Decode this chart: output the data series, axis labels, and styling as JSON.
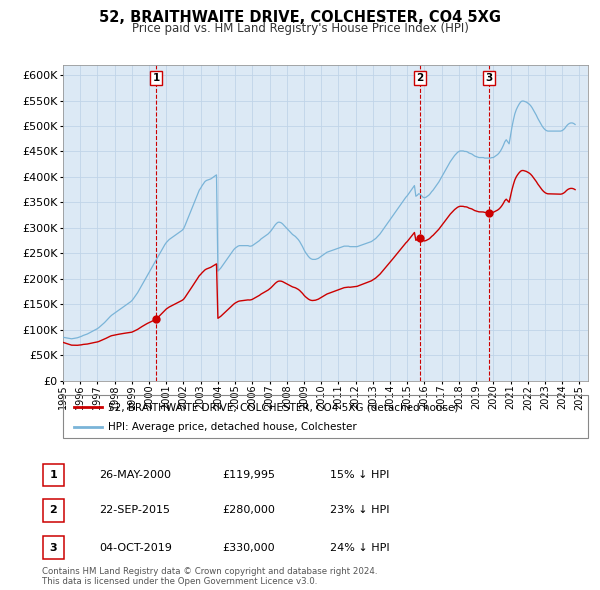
{
  "title": "52, BRAITHWAITE DRIVE, COLCHESTER, CO4 5XG",
  "subtitle": "Price paid vs. HM Land Registry's House Price Index (HPI)",
  "ylim": [
    0,
    620000
  ],
  "yticks": [
    0,
    50000,
    100000,
    150000,
    200000,
    250000,
    300000,
    350000,
    400000,
    450000,
    500000,
    550000,
    600000
  ],
  "xlim_start": 1995.0,
  "xlim_end": 2025.5,
  "hpi_color": "#7ab4d8",
  "price_color": "#cc0000",
  "marker_color": "#cc0000",
  "grid_color": "#c0d4e8",
  "background_color": "#dce9f5",
  "legend_items": [
    "52, BRAITHWAITE DRIVE, COLCHESTER, CO4 5XG (detached house)",
    "HPI: Average price, detached house, Colchester"
  ],
  "sale_points": [
    {
      "date_num": 2000.4,
      "price": 119995,
      "label": "1"
    },
    {
      "date_num": 2015.73,
      "price": 280000,
      "label": "2"
    },
    {
      "date_num": 2019.76,
      "price": 330000,
      "label": "3"
    }
  ],
  "vline_dates": [
    2000.4,
    2015.73,
    2019.76
  ],
  "annotations": [
    {
      "label": "1",
      "date": "26-MAY-2000",
      "price": "£119,995",
      "hpi_diff": "15% ↓ HPI"
    },
    {
      "label": "2",
      "date": "22-SEP-2015",
      "price": "£280,000",
      "hpi_diff": "23% ↓ HPI"
    },
    {
      "label": "3",
      "date": "04-OCT-2019",
      "price": "£330,000",
      "hpi_diff": "24% ↓ HPI"
    }
  ],
  "footer": "Contains HM Land Registry data © Crown copyright and database right 2024.\nThis data is licensed under the Open Government Licence v3.0.",
  "hpi_years": [
    1995.0,
    1995.083,
    1995.167,
    1995.25,
    1995.333,
    1995.417,
    1995.5,
    1995.583,
    1995.667,
    1995.75,
    1995.833,
    1995.917,
    1996.0,
    1996.083,
    1996.167,
    1996.25,
    1996.333,
    1996.417,
    1996.5,
    1996.583,
    1996.667,
    1996.75,
    1996.833,
    1996.917,
    1997.0,
    1997.083,
    1997.167,
    1997.25,
    1997.333,
    1997.417,
    1997.5,
    1997.583,
    1997.667,
    1997.75,
    1997.833,
    1997.917,
    1998.0,
    1998.083,
    1998.167,
    1998.25,
    1998.333,
    1998.417,
    1998.5,
    1998.583,
    1998.667,
    1998.75,
    1998.833,
    1998.917,
    1999.0,
    1999.083,
    1999.167,
    1999.25,
    1999.333,
    1999.417,
    1999.5,
    1999.583,
    1999.667,
    1999.75,
    1999.833,
    1999.917,
    2000.0,
    2000.083,
    2000.167,
    2000.25,
    2000.333,
    2000.417,
    2000.5,
    2000.583,
    2000.667,
    2000.75,
    2000.833,
    2000.917,
    2001.0,
    2001.083,
    2001.167,
    2001.25,
    2001.333,
    2001.417,
    2001.5,
    2001.583,
    2001.667,
    2001.75,
    2001.833,
    2001.917,
    2002.0,
    2002.083,
    2002.167,
    2002.25,
    2002.333,
    2002.417,
    2002.5,
    2002.583,
    2002.667,
    2002.75,
    2002.833,
    2002.917,
    2003.0,
    2003.083,
    2003.167,
    2003.25,
    2003.333,
    2003.417,
    2003.5,
    2003.583,
    2003.667,
    2003.75,
    2003.833,
    2003.917,
    2004.0,
    2004.083,
    2004.167,
    2004.25,
    2004.333,
    2004.417,
    2004.5,
    2004.583,
    2004.667,
    2004.75,
    2004.833,
    2004.917,
    2005.0,
    2005.083,
    2005.167,
    2005.25,
    2005.333,
    2005.417,
    2005.5,
    2005.583,
    2005.667,
    2005.75,
    2005.833,
    2005.917,
    2006.0,
    2006.083,
    2006.167,
    2006.25,
    2006.333,
    2006.417,
    2006.5,
    2006.583,
    2006.667,
    2006.75,
    2006.833,
    2006.917,
    2007.0,
    2007.083,
    2007.167,
    2007.25,
    2007.333,
    2007.417,
    2007.5,
    2007.583,
    2007.667,
    2007.75,
    2007.833,
    2007.917,
    2008.0,
    2008.083,
    2008.167,
    2008.25,
    2008.333,
    2008.417,
    2008.5,
    2008.583,
    2008.667,
    2008.75,
    2008.833,
    2008.917,
    2009.0,
    2009.083,
    2009.167,
    2009.25,
    2009.333,
    2009.417,
    2009.5,
    2009.583,
    2009.667,
    2009.75,
    2009.833,
    2009.917,
    2010.0,
    2010.083,
    2010.167,
    2010.25,
    2010.333,
    2010.417,
    2010.5,
    2010.583,
    2010.667,
    2010.75,
    2010.833,
    2010.917,
    2011.0,
    2011.083,
    2011.167,
    2011.25,
    2011.333,
    2011.417,
    2011.5,
    2011.583,
    2011.667,
    2011.75,
    2011.833,
    2011.917,
    2012.0,
    2012.083,
    2012.167,
    2012.25,
    2012.333,
    2012.417,
    2012.5,
    2012.583,
    2012.667,
    2012.75,
    2012.833,
    2012.917,
    2013.0,
    2013.083,
    2013.167,
    2013.25,
    2013.333,
    2013.417,
    2013.5,
    2013.583,
    2013.667,
    2013.75,
    2013.833,
    2013.917,
    2014.0,
    2014.083,
    2014.167,
    2014.25,
    2014.333,
    2014.417,
    2014.5,
    2014.583,
    2014.667,
    2014.75,
    2014.833,
    2014.917,
    2015.0,
    2015.083,
    2015.167,
    2015.25,
    2015.333,
    2015.417,
    2015.5,
    2015.583,
    2015.667,
    2015.75,
    2015.833,
    2015.917,
    2016.0,
    2016.083,
    2016.167,
    2016.25,
    2016.333,
    2016.417,
    2016.5,
    2016.583,
    2016.667,
    2016.75,
    2016.833,
    2016.917,
    2017.0,
    2017.083,
    2017.167,
    2017.25,
    2017.333,
    2017.417,
    2017.5,
    2017.583,
    2017.667,
    2017.75,
    2017.833,
    2017.917,
    2018.0,
    2018.083,
    2018.167,
    2018.25,
    2018.333,
    2018.417,
    2018.5,
    2018.583,
    2018.667,
    2018.75,
    2018.833,
    2018.917,
    2019.0,
    2019.083,
    2019.167,
    2019.25,
    2019.333,
    2019.417,
    2019.5,
    2019.583,
    2019.667,
    2019.75,
    2019.833,
    2019.917,
    2020.0,
    2020.083,
    2020.167,
    2020.25,
    2020.333,
    2020.417,
    2020.5,
    2020.583,
    2020.667,
    2020.75,
    2020.833,
    2020.917,
    2021.0,
    2021.083,
    2021.167,
    2021.25,
    2021.333,
    2021.417,
    2021.5,
    2021.583,
    2021.667,
    2021.75,
    2021.833,
    2021.917,
    2022.0,
    2022.083,
    2022.167,
    2022.25,
    2022.333,
    2022.417,
    2022.5,
    2022.583,
    2022.667,
    2022.75,
    2022.833,
    2022.917,
    2023.0,
    2023.083,
    2023.167,
    2023.25,
    2023.333,
    2023.417,
    2023.5,
    2023.583,
    2023.667,
    2023.75,
    2023.833,
    2023.917,
    2024.0,
    2024.083,
    2024.167,
    2024.25,
    2024.333,
    2024.417,
    2024.5,
    2024.583,
    2024.667,
    2024.75
  ],
  "hpi_vals": [
    85000,
    84500,
    84000,
    83500,
    83000,
    82500,
    82000,
    82500,
    83000,
    83500,
    84000,
    85000,
    86000,
    87000,
    88500,
    89500,
    90500,
    91500,
    93000,
    94500,
    96000,
    97500,
    99000,
    100500,
    102000,
    104000,
    106500,
    109000,
    111500,
    114000,
    117000,
    120000,
    123000,
    126000,
    128500,
    130500,
    132500,
    134500,
    136500,
    138500,
    140500,
    142500,
    144500,
    146500,
    148500,
    150500,
    152500,
    154500,
    157000,
    160500,
    164500,
    168500,
    172500,
    177500,
    182500,
    187500,
    192500,
    197500,
    202500,
    207500,
    212000,
    217000,
    222000,
    227000,
    232000,
    237000,
    242000,
    247000,
    252000,
    257000,
    262000,
    267000,
    271000,
    274000,
    277000,
    279000,
    281000,
    283000,
    285000,
    287000,
    289000,
    291000,
    293000,
    295000,
    298000,
    304000,
    311000,
    318000,
    325000,
    332000,
    339000,
    346000,
    353000,
    360000,
    367000,
    374000,
    378000,
    383000,
    387000,
    391000,
    393000,
    394000,
    395000,
    396000,
    398000,
    400000,
    402000,
    404000,
    215000,
    218000,
    221000,
    225000,
    229000,
    233000,
    237000,
    241000,
    245000,
    249000,
    253000,
    257000,
    260000,
    262000,
    264000,
    265000,
    265000,
    265000,
    265000,
    265000,
    265000,
    265000,
    264000,
    264000,
    265000,
    267000,
    269000,
    271000,
    273000,
    275000,
    278000,
    280000,
    282000,
    284000,
    286000,
    288000,
    291000,
    294000,
    298000,
    302000,
    306000,
    309000,
    311000,
    311000,
    310000,
    308000,
    305000,
    302000,
    299000,
    296000,
    293000,
    290000,
    287000,
    285000,
    283000,
    280000,
    277000,
    273000,
    268000,
    263000,
    257000,
    252000,
    248000,
    244000,
    241000,
    239000,
    238000,
    238000,
    238000,
    239000,
    240000,
    242000,
    244000,
    246000,
    248000,
    250000,
    252000,
    253000,
    254000,
    255000,
    256000,
    257000,
    258000,
    259000,
    260000,
    261000,
    262000,
    263000,
    264000,
    264000,
    264000,
    264000,
    263000,
    263000,
    263000,
    263000,
    263000,
    263000,
    264000,
    265000,
    266000,
    267000,
    268000,
    269000,
    270000,
    271000,
    272000,
    273000,
    275000,
    277000,
    279000,
    282000,
    285000,
    288000,
    292000,
    296000,
    300000,
    304000,
    308000,
    312000,
    316000,
    320000,
    324000,
    328000,
    332000,
    336000,
    340000,
    344000,
    348000,
    352000,
    356000,
    360000,
    363000,
    367000,
    371000,
    375000,
    379000,
    383000,
    362000,
    364000,
    367000,
    366000,
    363000,
    360000,
    359000,
    360000,
    362000,
    364000,
    367000,
    371000,
    374000,
    378000,
    382000,
    386000,
    390000,
    395000,
    400000,
    405000,
    410000,
    415000,
    420000,
    425000,
    430000,
    434000,
    438000,
    442000,
    445000,
    448000,
    450000,
    451000,
    451000,
    451000,
    450000,
    450000,
    449000,
    447000,
    446000,
    445000,
    443000,
    441000,
    440000,
    439000,
    438000,
    438000,
    438000,
    438000,
    437000,
    437000,
    437000,
    437000,
    437000,
    438000,
    438000,
    440000,
    442000,
    444000,
    447000,
    451000,
    456000,
    462000,
    469000,
    473000,
    469000,
    465000,
    482000,
    498000,
    512000,
    524000,
    532000,
    538000,
    543000,
    547000,
    549000,
    549000,
    548000,
    547000,
    545000,
    543000,
    540000,
    536000,
    531000,
    526000,
    521000,
    515000,
    510000,
    505000,
    500000,
    496000,
    493000,
    491000,
    490000,
    490000,
    490000,
    490000,
    490000,
    490000,
    490000,
    490000,
    490000,
    490000,
    491000,
    493000,
    496000,
    500000,
    503000,
    505000,
    506000,
    506000,
    505000,
    503000
  ]
}
